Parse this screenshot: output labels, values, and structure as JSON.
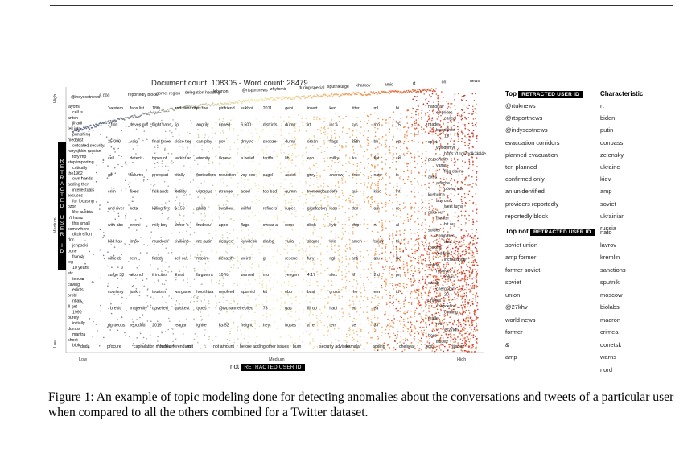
{
  "header": {
    "doc_count_text": "Document count: 108305 - Word count: 28479"
  },
  "axes": {
    "y_top": "High",
    "y_mid": "Medium",
    "y_bottom": "Low",
    "x_left": "Low",
    "x_mid": "Medium",
    "x_right": "High",
    "y_label_box": "RETRACTED USER ID",
    "x_label_prefix": "not",
    "x_label_box": "RETRACTED USER ID"
  },
  "plot_words": {
    "top_curve": [
      "@indyscotnews",
      "6,000",
      "reportedly block",
      "gomel region",
      "delegation heading",
      "lebanon",
      "@rtsportnews",
      "zhytomir",
      "during special",
      "sputnikurge",
      "kharkov",
      "amid",
      "rt",
      "on",
      "news"
    ],
    "left_column": [
      "layoffs",
      "cell is",
      "anton",
      "jihadi",
      "fell into",
      "punishing",
      "medalist",
      "outdated security",
      "narysjhkin russian",
      "tory mp",
      "stop importing",
      "critically",
      "the1962",
      "own hands",
      "adding then",
      "intellectuals",
      "excuses",
      "for focusing",
      "ozon",
      "like austria",
      "n't harm",
      "this small",
      "somewhere",
      "ditch effort",
      "doc",
      "jenpsaki",
      "bone",
      "frankly",
      "leg",
      "10 years",
      "etc",
      "tender",
      "caving",
      "edicts",
      "probl",
      "ntiah",
      "'ll get",
      "1990",
      "purely",
      "initially",
      "dumps",
      "mantra",
      "shoot",
      "blok"
    ],
    "right_column": [
      "national",
      "oil prices",
      "cancel",
      "made",
      "bloodshed",
      "10",
      "sport",
      "volodymyr",
      "https://t.co/2ty3k2k84e",
      "personality",
      "yamal",
      "flag claims",
      "axes",
      "attache",
      "power into",
      "kusturica",
      "any cost",
      "west turns",
      "calls out",
      "theater",
      "hit out",
      "soldier",
      "compares",
      "asia",
      "rockets",
      "red line",
      "increasingly",
      "online",
      "resolve",
      "2 gas",
      "czech",
      "chernobyl",
      "20",
      "unveils",
      "chancellor",
      "coming",
      "really",
      "red",
      "@27khv",
      "boss",
      "issues"
    ],
    "bottom_row": [
      "duda",
      "procure",
      "capitulation moscow",
      "held referendum",
      "exit",
      "not amount",
      "before adding",
      "other issues",
      "burn",
      "security adviser",
      "kamala",
      "adding",
      "chelsea",
      "boss",
      "issues"
    ],
    "mid_words": [
      "'western",
      "z fold",
      "25,000",
      "cell",
      "gift",
      "crim",
      "and river",
      "with abc",
      "bild has",
      "oilfields",
      "surge 30",
      "courtesy",
      "- brexit",
      "righteous",
      "fans list",
      "drives got",
      "vain",
      "detect",
      "failures",
      "fixed",
      "kets",
      "eremi",
      "impo",
      "rein",
      "alcohol",
      "junk",
      "maternity",
      "rebound",
      "18th",
      "flight bans",
      "final three",
      "types of",
      "provocat",
      "falklands",
      "killing five",
      "mily boy",
      "murdoch",
      "fatedy",
      "it incites",
      "tourism",
      "travelled",
      "2019",
      "and denazify",
      "ko",
      "close ties",
      "recent an",
      "vitally",
      "fertility",
      "$ 150",
      "unhcr 's",
      "civilians",
      "sell out",
      "finest",
      "wargame",
      "quickest",
      "reagan",
      "us the",
      "angrily",
      "can play",
      "eternity",
      "footballers",
      "vigorous",
      "philip",
      "trudeau",
      "mc putin",
      "maxim",
      "la guerra",
      "hoo thisa",
      "types",
      "ignite",
      "girlfriend",
      "ripped",
      "gov",
      "i knew",
      "reduction",
      "strange",
      "swallow",
      "appo",
      "delayed",
      "denazify",
      "10 %",
      "resolved",
      "@tvchannel",
      "ka-52",
      "sukhoi",
      "6,500",
      "dmytro",
      "a belief",
      "voy bec",
      "aded",
      "willful",
      "flags",
      "kyivdesk",
      "weird",
      "wanted",
      "spurred",
      "replied",
      "freight",
      "2011",
      "districts",
      "snooze",
      "tariffs",
      "sagel",
      "too bad",
      "refiners",
      "swear a",
      "dialog",
      "gi",
      "mu",
      "kit",
      "78",
      "hey",
      "geni",
      "dump",
      "dump",
      "lib",
      "assist",
      "gumm",
      "rupee",
      "rome",
      "yulia",
      "rescue",
      "yevgeni",
      "ebb",
      "gas",
      "buses",
      "insert",
      "irt",
      "orbán",
      "eco",
      "grey",
      "tremendous",
      "gigafactory",
      "ditch",
      "shame",
      "fury",
      "4.17",
      "bust",
      "fill up",
      "a ref",
      "ked",
      "inr &",
      "flags",
      "milky",
      "andrew",
      "defe",
      "leap",
      "kyiv",
      "lolo",
      "ngl",
      "alex",
      "gross",
      "haul",
      "terr",
      "litter",
      "sys",
      "25th",
      "iku",
      "cruel",
      "qui",
      "dev",
      "ship",
      "amen",
      "anti",
      "ftf",
      "rhe",
      "ed",
      "se",
      "ml",
      "mo",
      "bb",
      "flat",
      "nato",
      "kind",
      "am",
      "ru",
      "crazy",
      "afu",
      "2 d",
      "ern",
      "ea",
      "33",
      "bi",
      "75",
      "ep",
      "ski",
      "is",
      "int",
      "re",
      "al",
      "tri",
      "lik",
      "pm",
      "id"
    ],
    "x_bottom_right": [
      "kamala",
      "adding",
      "chelsea",
      "boss",
      "issues"
    ]
  },
  "side_panel": {
    "top_header_prefix": "Top",
    "top_header_box": "RETRACTED USER ID",
    "characteristic_header": "Characteristic",
    "top_rows": [
      {
        "left": "@rtuknews",
        "right": "rt"
      },
      {
        "left": "@rtsportnews",
        "right": "biden"
      },
      {
        "left": "@indyscotnews",
        "right": "putin"
      },
      {
        "left": "evacuation corridors",
        "right": "donbass"
      },
      {
        "left": "planned evacuation",
        "right": "zelensky"
      },
      {
        "left": "ten planned",
        "right": "ukraine"
      },
      {
        "left": "confirmed only",
        "right": "kiev"
      },
      {
        "left": "an unidentified",
        "right": "amp"
      },
      {
        "left": "providers reportedly",
        "right": "soviet"
      },
      {
        "left": "reportedly block",
        "right": "ukrainian"
      },
      {
        "left": "",
        "right": "russia"
      }
    ],
    "not_header_prefix": "Top not",
    "not_header_box": "RETRACTED USER ID",
    "not_rows": [
      {
        "left": "",
        "right": "nato"
      },
      {
        "left": "soviet union",
        "right": "lavrov"
      },
      {
        "left": "amp former",
        "right": "kremlin"
      },
      {
        "left": "former soviet",
        "right": "sanctions"
      },
      {
        "left": "soviet",
        "right": "sputnik"
      },
      {
        "left": "union",
        "right": "moscow"
      },
      {
        "left": "@27khv",
        "right": "biolabs"
      },
      {
        "left": "world news",
        "right": "macron"
      },
      {
        "left": "former",
        "right": "crimea"
      },
      {
        "left": "&",
        "right": "donetsk"
      },
      {
        "left": "amp",
        "right": "warns"
      },
      {
        "left": "",
        "right": "nord"
      }
    ]
  },
  "caption": "Figure 1: An example of topic modeling done for detecting anomalies about the conversations and tweets of a particular user when compared to all the others combined for a Twitter dataset.",
  "colors": {
    "low_freq": "#283b7a",
    "mid_freq": "#f2e7a6",
    "high_freq": "#c91f1f",
    "side_box": "#000000"
  }
}
